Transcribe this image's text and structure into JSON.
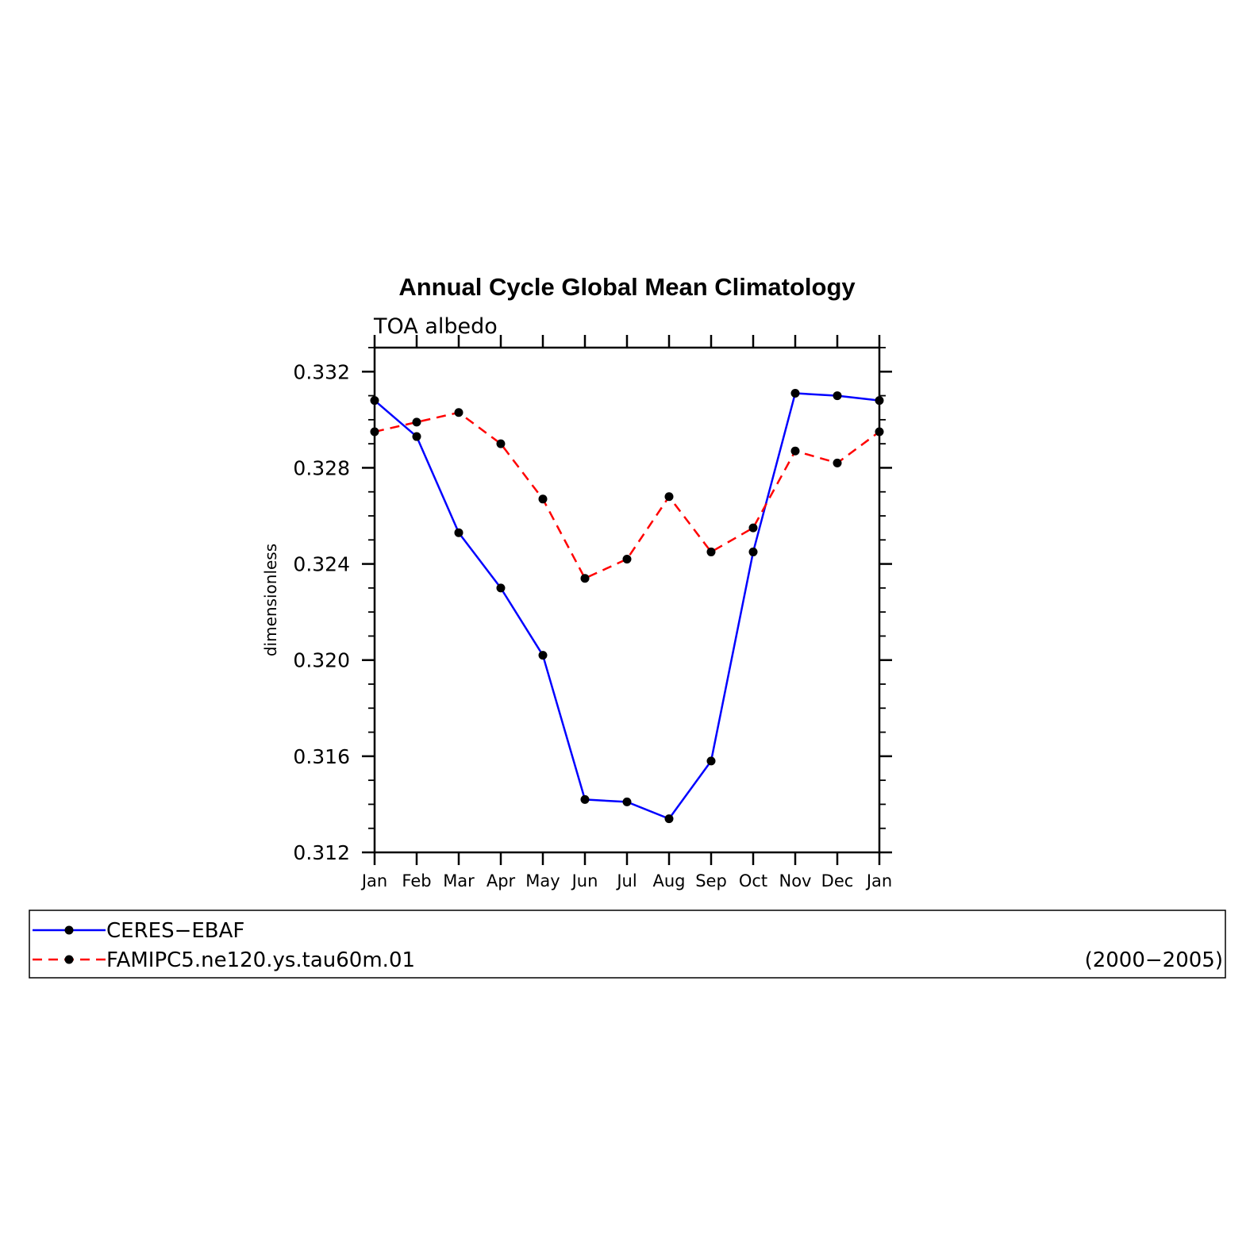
{
  "chart_data": {
    "type": "line",
    "title": "Annual Cycle Global Mean Climatology",
    "subtitle": "TOA albedo",
    "xlabel": "",
    "ylabel": "dimensionless",
    "categories": [
      "Jan",
      "Feb",
      "Mar",
      "Apr",
      "May",
      "Jun",
      "Jul",
      "Aug",
      "Sep",
      "Oct",
      "Nov",
      "Dec",
      "Jan"
    ],
    "ylim": [
      0.312,
      0.333
    ],
    "yticks": [
      "0.312",
      "0.316",
      "0.320",
      "0.324",
      "0.328",
      "0.332"
    ],
    "grid": false,
    "legend_position": "bottom",
    "period_label": "(2000−2005)",
    "series": [
      {
        "name": "CERES−EBAF",
        "color": "#0000ff",
        "dash": "solid",
        "marker": "circle",
        "values": [
          0.3308,
          0.3293,
          0.3253,
          0.323,
          0.3202,
          0.3142,
          0.3141,
          0.3134,
          0.3158,
          0.3245,
          0.3311,
          0.331,
          0.3308
        ]
      },
      {
        "name": "FAMIPC5.ne120.ys.tau60m.01",
        "color": "#ff0000",
        "dash": "dashed",
        "marker": "circle",
        "values": [
          0.3295,
          0.3299,
          0.3303,
          0.329,
          0.3267,
          0.3234,
          0.3242,
          0.3268,
          0.3245,
          0.3255,
          0.3287,
          0.3282,
          0.3295
        ]
      }
    ]
  }
}
